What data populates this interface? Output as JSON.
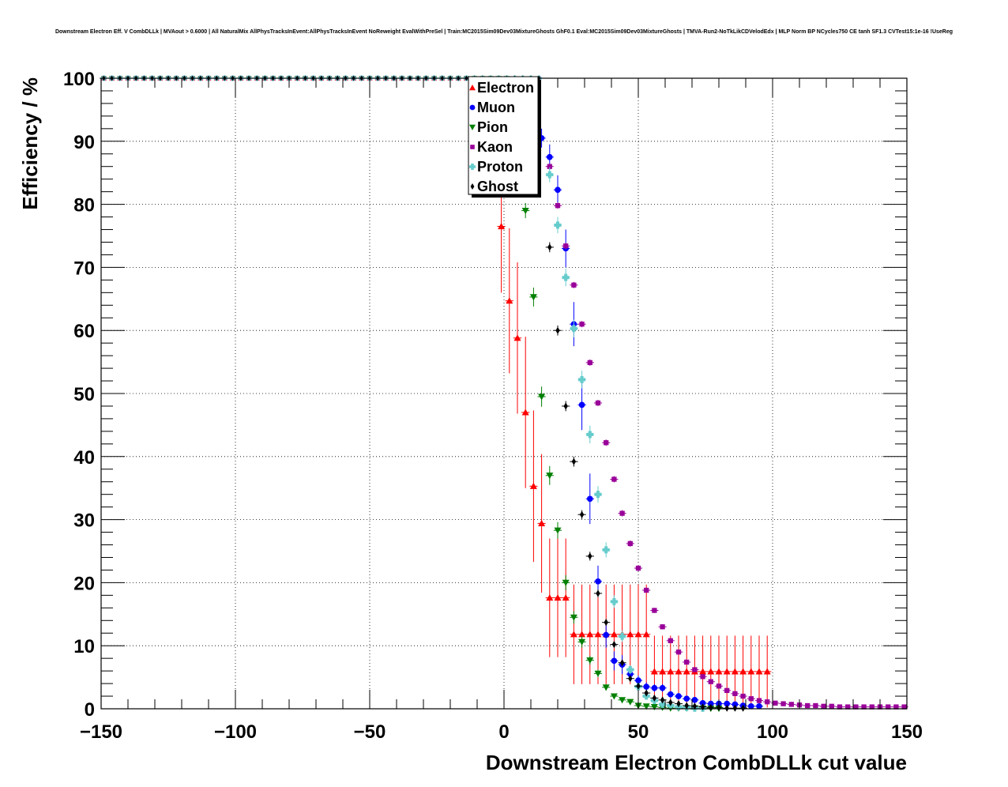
{
  "chart_data": {
    "type": "scatter",
    "title": "Downstream Electron Eff. V CombDLLk | MVAout > 0.6000 | All NaturalMix AllPhysTracksInEvent:AllPhysTracksInEvent NoReweight EvalWithPreSel | Train:MC2015Sim09Dev03MixtureGhosts GhF0.1 Eval:MC2015Sim09Dev03MixtureGhosts | TMVA-Run2-NoTkLikCDVelodEdx | MLP Norm BP NCycles750 CE tanh SF1.3 CVTest15:1e-16 !UseReg",
    "xlabel": "Downstream Electron CombDLLk cut value",
    "ylabel": "Efficiency / %",
    "xlim": [
      -150,
      150
    ],
    "ylim": [
      0,
      100
    ],
    "grid": true,
    "legend_position": "top-center",
    "x_ticks": [
      "−150",
      "−100",
      "−50",
      "0",
      "50",
      "100",
      "150"
    ],
    "x_tick_values": [
      -150,
      -100,
      -50,
      0,
      50,
      100,
      150
    ],
    "y_ticks": [
      "0",
      "10",
      "20",
      "30",
      "40",
      "50",
      "60",
      "70",
      "80",
      "90",
      "100"
    ],
    "y_tick_values": [
      0,
      10,
      20,
      30,
      40,
      50,
      60,
      70,
      80,
      90,
      100
    ],
    "series": [
      {
        "name": "Electron",
        "color": "#ff0000",
        "marker": "triangle-up",
        "points": [
          [
            -1,
            76.5,
            10.5
          ],
          [
            2,
            64.7,
            11.5
          ],
          [
            5,
            58.8,
            12
          ],
          [
            8,
            47,
            12
          ],
          [
            11,
            35.3,
            12
          ],
          [
            14,
            29.4,
            11
          ],
          [
            17,
            17.6,
            9.4
          ],
          [
            20,
            17.6,
            9.4
          ],
          [
            23,
            17.6,
            9.4
          ],
          [
            26,
            11.8,
            7.9
          ],
          [
            29,
            11.8,
            7.9
          ],
          [
            32,
            11.8,
            7.9
          ],
          [
            35,
            11.8,
            7.9
          ],
          [
            38,
            11.8,
            7.9
          ],
          [
            41,
            11.8,
            7.9
          ],
          [
            44,
            11.8,
            7.9
          ],
          [
            47,
            11.8,
            7.9
          ],
          [
            50,
            11.8,
            7.9
          ],
          [
            53,
            11.8,
            7.9
          ],
          [
            56,
            5.9,
            5.7
          ],
          [
            59,
            5.9,
            5.7
          ],
          [
            62,
            5.9,
            5.7
          ],
          [
            65,
            5.9,
            5.7
          ],
          [
            68,
            5.9,
            5.7
          ],
          [
            71,
            5.9,
            5.7
          ],
          [
            74,
            5.9,
            5.7
          ],
          [
            77,
            5.9,
            5.7
          ],
          [
            80,
            5.9,
            5.7
          ],
          [
            83,
            5.9,
            5.7
          ],
          [
            86,
            5.9,
            5.7
          ],
          [
            89,
            5.9,
            5.7
          ],
          [
            92,
            5.9,
            5.7
          ],
          [
            95,
            5.9,
            5.7
          ],
          [
            98,
            5.9,
            5.7
          ]
        ]
      },
      {
        "name": "Muon",
        "color": "#0000ff",
        "marker": "circle",
        "points": [
          [
            14,
            90.5,
            1.5
          ],
          [
            17,
            87.5,
            2
          ],
          [
            20,
            82.3,
            2.3
          ],
          [
            23,
            73,
            3
          ],
          [
            26,
            61,
            3.5
          ],
          [
            29,
            48.2,
            4
          ],
          [
            32,
            33.3,
            4
          ],
          [
            35,
            20.2,
            2.5
          ],
          [
            38,
            11.7,
            2
          ],
          [
            41,
            7.6,
            1.5
          ],
          [
            44,
            7,
            1.5
          ],
          [
            47,
            5.5,
            1
          ],
          [
            50,
            4.5,
            0.8
          ],
          [
            53,
            3.5,
            0.7
          ],
          [
            56,
            3.3,
            0.6
          ],
          [
            59,
            3.3,
            0.6
          ],
          [
            62,
            2.3,
            0.5
          ],
          [
            65,
            2,
            0.5
          ],
          [
            68,
            1.6,
            0.4
          ],
          [
            71,
            1.4,
            0.4
          ],
          [
            74,
            0.9,
            0.3
          ],
          [
            77,
            0.8,
            0.3
          ],
          [
            80,
            0.8,
            0.3
          ],
          [
            83,
            0.8,
            0.3
          ],
          [
            86,
            0.7,
            0.3
          ],
          [
            89,
            0.5,
            0.2
          ],
          [
            92,
            0.4,
            0.2
          ],
          [
            95,
            0.4,
            0.2
          ]
        ]
      },
      {
        "name": "Pion",
        "color": "#008000",
        "marker": "triangle-down",
        "points": [
          [
            5,
            85.2,
            1.2
          ],
          [
            8,
            79,
            1.2
          ],
          [
            11,
            65.3,
            1.5
          ],
          [
            14,
            49.5,
            1.6
          ],
          [
            17,
            37,
            1.5
          ],
          [
            20,
            28.3,
            1.3
          ],
          [
            23,
            20,
            1.2
          ],
          [
            26,
            14.5,
            1
          ],
          [
            29,
            10.6,
            0.9
          ],
          [
            32,
            7.7,
            0.7
          ],
          [
            35,
            5.6,
            0.6
          ],
          [
            38,
            3.4,
            0.5
          ],
          [
            41,
            2,
            0.4
          ],
          [
            44,
            1.4,
            0.3
          ],
          [
            47,
            1.1,
            0.3
          ],
          [
            50,
            0.5,
            0.2
          ],
          [
            53,
            0.4,
            0.2
          ],
          [
            56,
            0.3,
            0.1
          ],
          [
            59,
            0.2,
            0.1
          ],
          [
            62,
            0.1,
            0.1
          ],
          [
            65,
            0.1,
            0.1
          ],
          [
            68,
            0.1,
            0.1
          ],
          [
            71,
            0.1,
            0.1
          ],
          [
            74,
            0.05,
            0.05
          ],
          [
            77,
            0.05,
            0.05
          ],
          [
            80,
            0.05,
            0.05
          ]
        ]
      },
      {
        "name": "Kaon",
        "color": "#990099",
        "marker": "square",
        "points": [
          [
            17,
            86,
            0.5
          ],
          [
            20,
            79.8,
            0.5
          ],
          [
            23,
            73.4,
            0.5
          ],
          [
            26,
            67.2,
            0.5
          ],
          [
            29,
            61,
            0.5
          ],
          [
            32,
            54.9,
            0.5
          ],
          [
            35,
            48.5,
            0.5
          ],
          [
            38,
            42.2,
            0.5
          ],
          [
            41,
            36.4,
            0.5
          ],
          [
            44,
            31,
            0.5
          ],
          [
            47,
            26.2,
            0.5
          ],
          [
            50,
            22.3,
            0.5
          ],
          [
            53,
            18.8,
            0.4
          ],
          [
            56,
            15.6,
            0.4
          ],
          [
            59,
            13,
            0.4
          ],
          [
            62,
            10.8,
            0.4
          ],
          [
            65,
            9,
            0.3
          ],
          [
            68,
            7.4,
            0.3
          ],
          [
            71,
            6.2,
            0.3
          ],
          [
            74,
            5.1,
            0.3
          ],
          [
            77,
            4.3,
            0.2
          ],
          [
            80,
            3.6,
            0.2
          ],
          [
            83,
            2.9,
            0.2
          ],
          [
            86,
            2.4,
            0.2
          ],
          [
            89,
            2,
            0.2
          ],
          [
            92,
            1.6,
            0.1
          ],
          [
            95,
            1.3,
            0.1
          ],
          [
            98,
            1.1,
            0.1
          ],
          [
            101,
            0.9,
            0.1
          ],
          [
            104,
            0.8,
            0.1
          ],
          [
            107,
            0.7,
            0.1
          ],
          [
            110,
            0.6,
            0.1
          ],
          [
            113,
            0.5,
            0.1
          ],
          [
            116,
            0.5,
            0.1
          ],
          [
            119,
            0.4,
            0.1
          ],
          [
            122,
            0.4,
            0.1
          ],
          [
            125,
            0.3,
            0.1
          ],
          [
            128,
            0.3,
            0.1
          ],
          [
            131,
            0.3,
            0.1
          ],
          [
            134,
            0.3,
            0.1
          ],
          [
            137,
            0.3,
            0.1
          ],
          [
            140,
            0.3,
            0.1
          ],
          [
            143,
            0.3,
            0.1
          ],
          [
            146,
            0.3,
            0.1
          ],
          [
            149,
            0.3,
            0.1
          ]
        ]
      },
      {
        "name": "Proton",
        "color": "#66cccc",
        "marker": "cross",
        "points": [
          [
            17,
            84.7,
            1.2
          ],
          [
            20,
            76.7,
            1.3
          ],
          [
            23,
            68.4,
            1.4
          ],
          [
            26,
            60.3,
            1.4
          ],
          [
            29,
            52.2,
            1.4
          ],
          [
            32,
            43.5,
            1.4
          ],
          [
            35,
            34,
            1.3
          ],
          [
            38,
            25.2,
            1.2
          ],
          [
            41,
            17,
            1
          ],
          [
            44,
            11.5,
            0.9
          ],
          [
            47,
            6.2,
            0.7
          ],
          [
            50,
            3.5,
            0.5
          ],
          [
            53,
            2,
            0.4
          ],
          [
            56,
            1.3,
            0.3
          ],
          [
            59,
            0.7,
            0.2
          ],
          [
            62,
            0.5,
            0.2
          ],
          [
            65,
            0.3,
            0.1
          ],
          [
            68,
            0.2,
            0.1
          ],
          [
            71,
            0.1,
            0.1
          ],
          [
            74,
            0.1,
            0.1
          ]
        ]
      },
      {
        "name": "Ghost",
        "color": "#000000",
        "marker": "diamond",
        "points": [
          [
            17,
            73.2,
            0.8
          ],
          [
            20,
            60,
            0.8
          ],
          [
            23,
            48,
            0.8
          ],
          [
            26,
            39.2,
            0.8
          ],
          [
            29,
            30.8,
            0.7
          ],
          [
            32,
            24.2,
            0.7
          ],
          [
            35,
            18.3,
            0.6
          ],
          [
            38,
            13.7,
            0.5
          ],
          [
            41,
            10.2,
            0.5
          ],
          [
            44,
            7.3,
            0.4
          ],
          [
            47,
            4.8,
            0.4
          ],
          [
            50,
            3.6,
            0.3
          ],
          [
            53,
            2.5,
            0.3
          ],
          [
            56,
            1.7,
            0.2
          ],
          [
            59,
            1.4,
            0.2
          ],
          [
            62,
            1,
            0.2
          ],
          [
            65,
            0.8,
            0.1
          ],
          [
            68,
            0.5,
            0.1
          ],
          [
            71,
            0.4,
            0.1
          ],
          [
            74,
            0.3,
            0.1
          ],
          [
            77,
            0.2,
            0.1
          ],
          [
            80,
            0.2,
            0.1
          ],
          [
            83,
            0.1,
            0.1
          ],
          [
            86,
            0.1,
            0.1
          ],
          [
            89,
            0.1,
            0.1
          ]
        ]
      }
    ]
  }
}
